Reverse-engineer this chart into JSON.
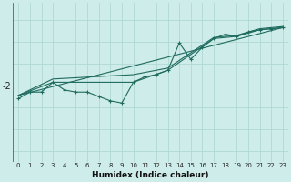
{
  "xlabel": "Humidex (Indice chaleur)",
  "bg_color": "#ceecea",
  "grid_color": "#afd8d4",
  "line_color": "#1f6b5e",
  "x_ticks": [
    0,
    1,
    2,
    3,
    4,
    5,
    6,
    7,
    8,
    9,
    10,
    11,
    12,
    13,
    14,
    15,
    16,
    17,
    18,
    19,
    20,
    21,
    22,
    23
  ],
  "xlim": [
    -0.5,
    23.5
  ],
  "ylim": [
    -5.5,
    1.8
  ],
  "ytick_val": -2,
  "ytick_label": "-2",
  "series0": {
    "x": [
      0,
      1,
      2,
      3,
      4,
      5,
      6,
      7,
      8,
      9,
      10,
      11,
      12,
      13,
      14,
      15,
      16,
      17,
      18,
      19,
      20,
      21,
      22,
      23
    ],
    "y": [
      -2.6,
      -2.3,
      -2.3,
      -1.85,
      -2.2,
      -2.3,
      -2.3,
      -2.5,
      -2.7,
      -2.8,
      -1.85,
      -1.6,
      -1.5,
      -1.3,
      -0.05,
      -0.8,
      -0.25,
      0.15,
      0.35,
      0.25,
      0.45,
      0.55,
      0.6,
      0.65
    ]
  },
  "series1": {
    "x": [
      0,
      23
    ],
    "y": [
      -2.45,
      0.65
    ]
  },
  "series2": {
    "x": [
      0,
      3,
      10,
      13,
      17,
      19,
      21,
      23
    ],
    "y": [
      -2.45,
      -1.85,
      -1.85,
      -1.3,
      0.15,
      0.25,
      0.55,
      0.65
    ]
  },
  "series3": {
    "x": [
      0,
      3,
      10,
      13,
      17,
      19,
      21,
      23
    ],
    "y": [
      -2.45,
      -1.7,
      -1.5,
      -1.2,
      0.2,
      0.3,
      0.6,
      0.7
    ]
  }
}
